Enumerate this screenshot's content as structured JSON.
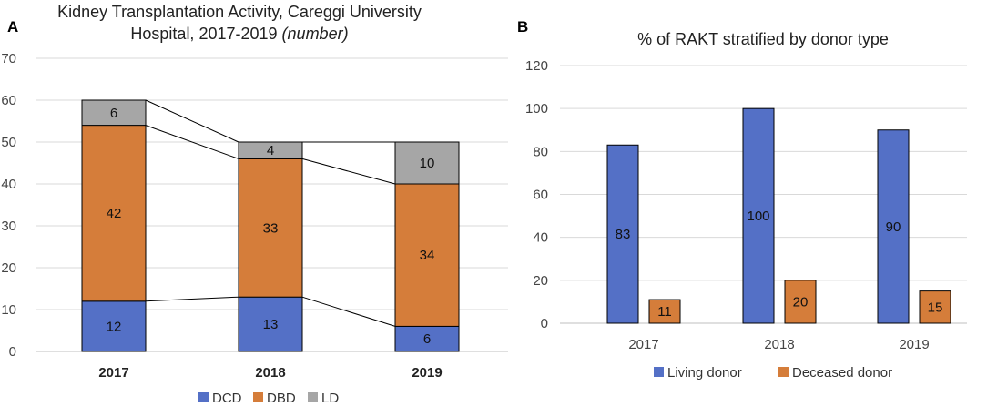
{
  "panels": {
    "a": "A",
    "b": "B"
  },
  "chart_data": [
    {
      "type": "bar",
      "stacked": true,
      "title_lines": [
        "Kidney Transplantation Activity, Careggi University",
        "Hospital, 2017-2019"
      ],
      "title_emphasis": "(number)",
      "categories": [
        "2017",
        "2018",
        "2019"
      ],
      "series": [
        {
          "name": "DCD",
          "values": [
            12,
            13,
            6
          ],
          "color": "#5470c6"
        },
        {
          "name": "DBD",
          "values": [
            42,
            33,
            34
          ],
          "color": "#d57d3a"
        },
        {
          "name": "LD",
          "values": [
            6,
            4,
            10
          ],
          "color": "#a6a6a6"
        }
      ],
      "ylim": [
        0,
        70
      ],
      "yticks": [
        0,
        10,
        20,
        30,
        40,
        50,
        60,
        70
      ],
      "grid": true,
      "connector_lines": true,
      "legend": "bottom",
      "xlabel": "",
      "ylabel": ""
    },
    {
      "type": "bar",
      "stacked": false,
      "title": "% of RAKT stratified by donor type",
      "categories": [
        "2017",
        "2018",
        "2019"
      ],
      "series": [
        {
          "name": "Living donor",
          "values": [
            83,
            100,
            90
          ],
          "color": "#5470c6"
        },
        {
          "name": "Deceased donor",
          "values": [
            11,
            20,
            15
          ],
          "color": "#d57d3a"
        }
      ],
      "ylim": [
        0,
        120
      ],
      "yticks": [
        0,
        20,
        40,
        60,
        80,
        100,
        120
      ],
      "grid": true,
      "legend": "bottom",
      "xlabel": "",
      "ylabel": ""
    }
  ]
}
